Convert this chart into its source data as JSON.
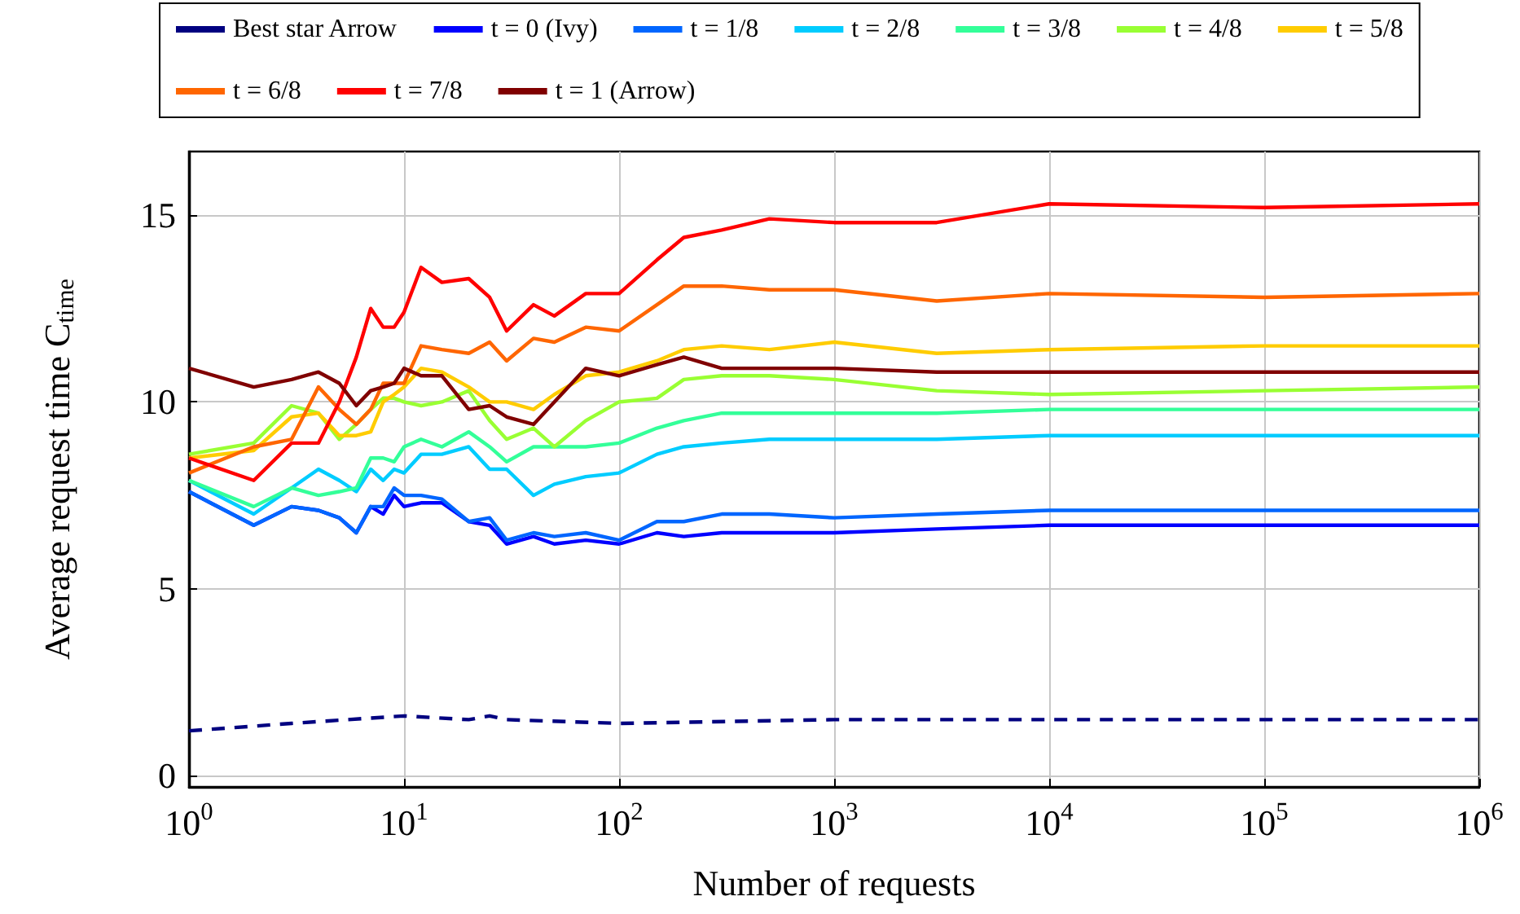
{
  "chart_data": {
    "type": "line",
    "xlabel": "Number of requests",
    "ylabel": "Average request time C$_{time}$",
    "log": "x",
    "grid": true,
    "legend": "top",
    "marker": "none",
    "xlim": [
      1,
      1000000
    ],
    "xticks": [
      {
        "value": 1,
        "label": "10$^{0}$"
      },
      {
        "value": 10,
        "label": "10$^{1}$"
      },
      {
        "value": 100,
        "label": "10$^{2}$"
      },
      {
        "value": 1000,
        "label": "10$^{3}$"
      },
      {
        "value": 10000,
        "label": "10$^{4}$"
      },
      {
        "value": 100000,
        "label": "10$^{5}$"
      },
      {
        "value": 1000000,
        "label": "10$^{6}$"
      }
    ],
    "ylim": [
      -0.3,
      16.7
    ],
    "yticks": [
      0,
      5,
      10,
      15
    ],
    "x": [
      1,
      2,
      3,
      4,
      5,
      6,
      7,
      8,
      9,
      10,
      12,
      15,
      20,
      25,
      30,
      40,
      50,
      70,
      100,
      150,
      200,
      300,
      500,
      1000,
      3000,
      10000,
      100000,
      1000000
    ],
    "series": [
      {
        "name": "Best star Arrow",
        "color": "#000080",
        "line_style": "dashed",
        "x": [
          1,
          3,
          10,
          20,
          25,
          30,
          100,
          1000,
          1000000
        ],
        "values": [
          1.2,
          1.4,
          1.6,
          1.5,
          1.6,
          1.5,
          1.4,
          1.5,
          1.5
        ]
      },
      {
        "name": "t = 0 (Ivy)",
        "color": "#0000ff",
        "values": [
          7.6,
          6.7,
          7.2,
          7.1,
          6.9,
          6.5,
          7.2,
          7.0,
          7.5,
          7.2,
          7.3,
          7.3,
          6.8,
          6.7,
          6.2,
          6.4,
          6.2,
          6.3,
          6.2,
          6.5,
          6.4,
          6.5,
          6.5,
          6.5,
          6.6,
          6.7,
          6.7,
          6.7
        ]
      },
      {
        "name": "t = 1/8",
        "color": "#0066ff",
        "values": [
          7.6,
          6.7,
          7.2,
          7.1,
          6.9,
          6.5,
          7.2,
          7.2,
          7.7,
          7.5,
          7.5,
          7.4,
          6.8,
          6.9,
          6.3,
          6.5,
          6.4,
          6.5,
          6.3,
          6.8,
          6.8,
          7.0,
          7.0,
          6.9,
          7.0,
          7.1,
          7.1,
          7.1
        ]
      },
      {
        "name": "t = 2/8",
        "color": "#00ccff",
        "values": [
          7.9,
          7.0,
          7.7,
          8.2,
          7.9,
          7.6,
          8.2,
          7.9,
          8.2,
          8.1,
          8.6,
          8.6,
          8.8,
          8.2,
          8.2,
          7.5,
          7.8,
          8.0,
          8.1,
          8.6,
          8.8,
          8.9,
          9.0,
          9.0,
          9.0,
          9.1,
          9.1,
          9.1
        ]
      },
      {
        "name": "t = 3/8",
        "color": "#33ff99",
        "values": [
          7.9,
          7.2,
          7.7,
          7.5,
          7.6,
          7.7,
          8.5,
          8.5,
          8.4,
          8.8,
          9.0,
          8.8,
          9.2,
          8.8,
          8.4,
          8.8,
          8.8,
          8.8,
          8.9,
          9.3,
          9.5,
          9.7,
          9.7,
          9.7,
          9.7,
          9.8,
          9.8,
          9.8
        ]
      },
      {
        "name": "t = 4/8",
        "color": "#99ff33",
        "values": [
          8.6,
          8.9,
          9.9,
          9.7,
          9.0,
          9.4,
          9.8,
          10.1,
          10.1,
          10.0,
          9.9,
          10.0,
          10.3,
          9.5,
          9.0,
          9.3,
          8.8,
          9.5,
          10.0,
          10.1,
          10.6,
          10.7,
          10.7,
          10.6,
          10.3,
          10.2,
          10.3,
          10.4
        ]
      },
      {
        "name": "t = 5/8",
        "color": "#ffcc00",
        "values": [
          8.5,
          8.7,
          9.6,
          9.7,
          9.1,
          9.1,
          9.2,
          10.0,
          10.2,
          10.4,
          10.9,
          10.8,
          10.4,
          10.0,
          10.0,
          9.8,
          10.2,
          10.7,
          10.8,
          11.1,
          11.4,
          11.5,
          11.4,
          11.6,
          11.3,
          11.4,
          11.5,
          11.5
        ]
      },
      {
        "name": "t = 6/8",
        "color": "#ff6600",
        "values": [
          8.1,
          8.8,
          9.0,
          10.4,
          9.8,
          9.4,
          9.8,
          10.5,
          10.5,
          10.5,
          11.5,
          11.4,
          11.3,
          11.6,
          11.1,
          11.7,
          11.6,
          12.0,
          11.9,
          12.6,
          13.1,
          13.1,
          13.0,
          13.0,
          12.7,
          12.9,
          12.8,
          12.9
        ]
      },
      {
        "name": "t = 7/8",
        "color": "#ff0000",
        "values": [
          8.5,
          7.9,
          8.9,
          8.9,
          10.0,
          11.2,
          12.5,
          12.0,
          12.0,
          12.4,
          13.6,
          13.2,
          13.3,
          12.8,
          11.9,
          12.6,
          12.3,
          12.9,
          12.9,
          13.8,
          14.4,
          14.6,
          14.9,
          14.8,
          14.8,
          15.3,
          15.2,
          15.3
        ]
      },
      {
        "name": "t = 1 (Arrow)",
        "color": "#800000",
        "values": [
          10.9,
          10.4,
          10.6,
          10.8,
          10.5,
          9.9,
          10.3,
          10.4,
          10.5,
          10.9,
          10.7,
          10.7,
          9.8,
          9.9,
          9.6,
          9.4,
          10.0,
          10.9,
          10.7,
          11.0,
          11.2,
          10.9,
          10.9,
          10.9,
          10.8,
          10.8,
          10.8,
          10.8
        ]
      }
    ]
  }
}
